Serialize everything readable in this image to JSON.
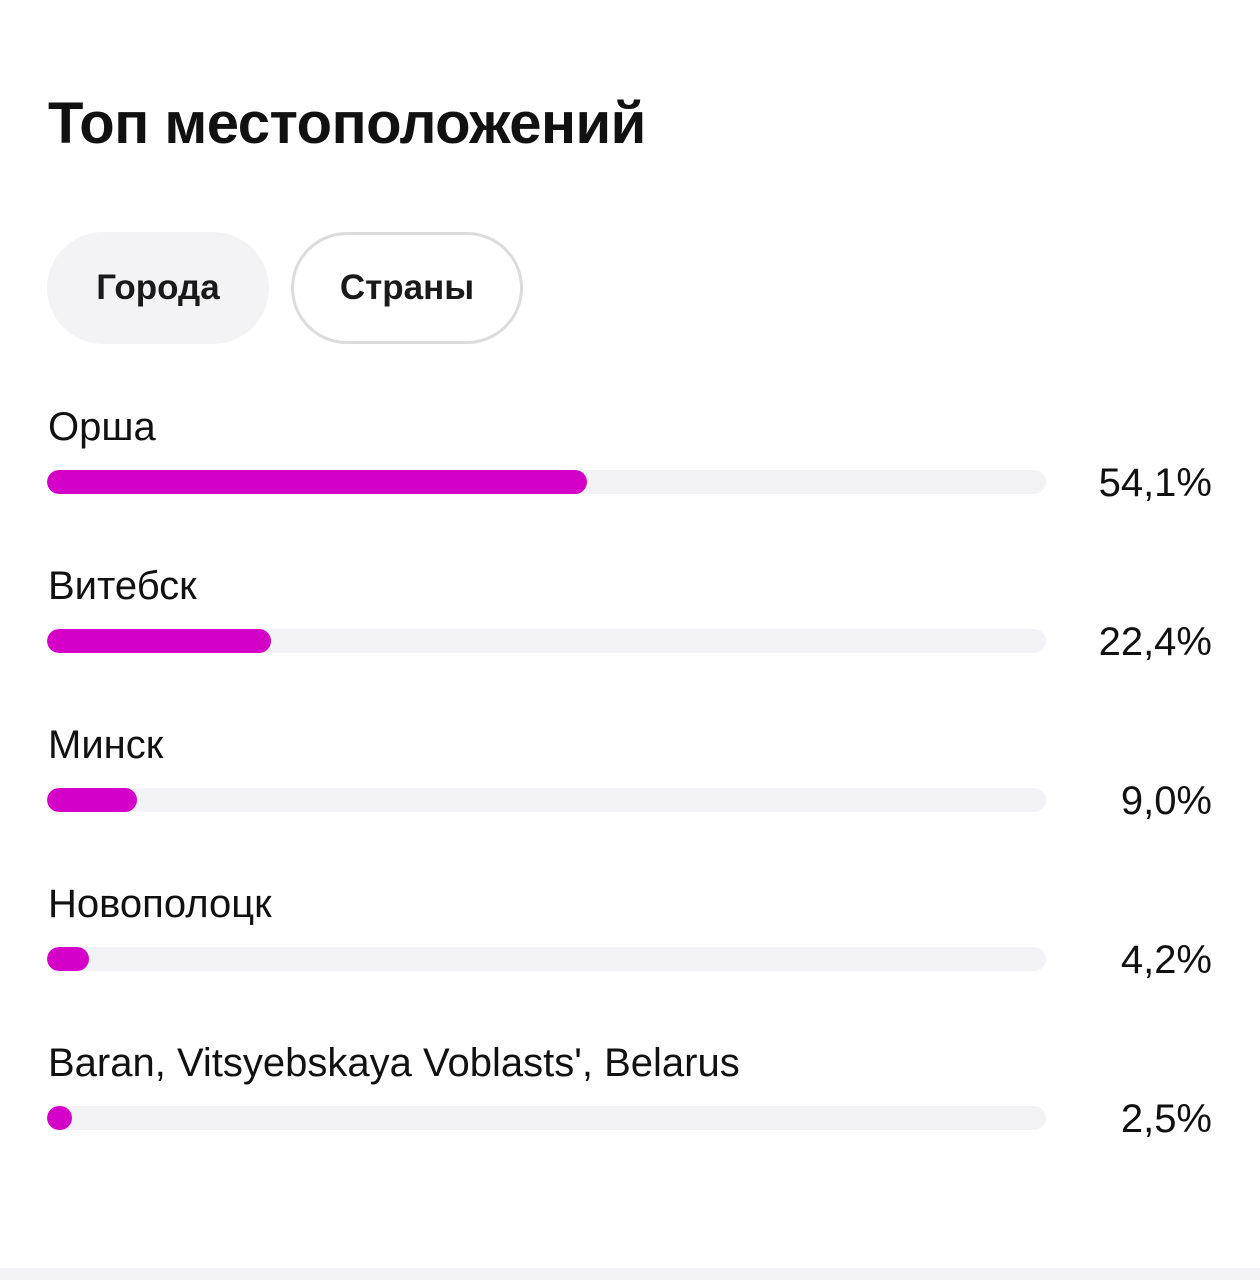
{
  "header": {
    "title": "Топ местоположений"
  },
  "tabs": [
    {
      "label": "Города",
      "selected": true
    },
    {
      "label": "Страны",
      "selected": false
    }
  ],
  "accent_color": "#d400c8",
  "chart_data": {
    "type": "bar",
    "categories": [
      "Орша",
      "Витебск",
      "Минск",
      "Новополоцк",
      "Baran, Vitsyebskaya Voblasts', Belarus"
    ],
    "values": [
      54.1,
      22.4,
      9.0,
      4.2,
      2.5
    ],
    "labels": [
      "54,1%",
      "22,4%",
      "9,0%",
      "4,2%",
      "2,5%"
    ],
    "ylim": [
      0,
      100
    ]
  }
}
